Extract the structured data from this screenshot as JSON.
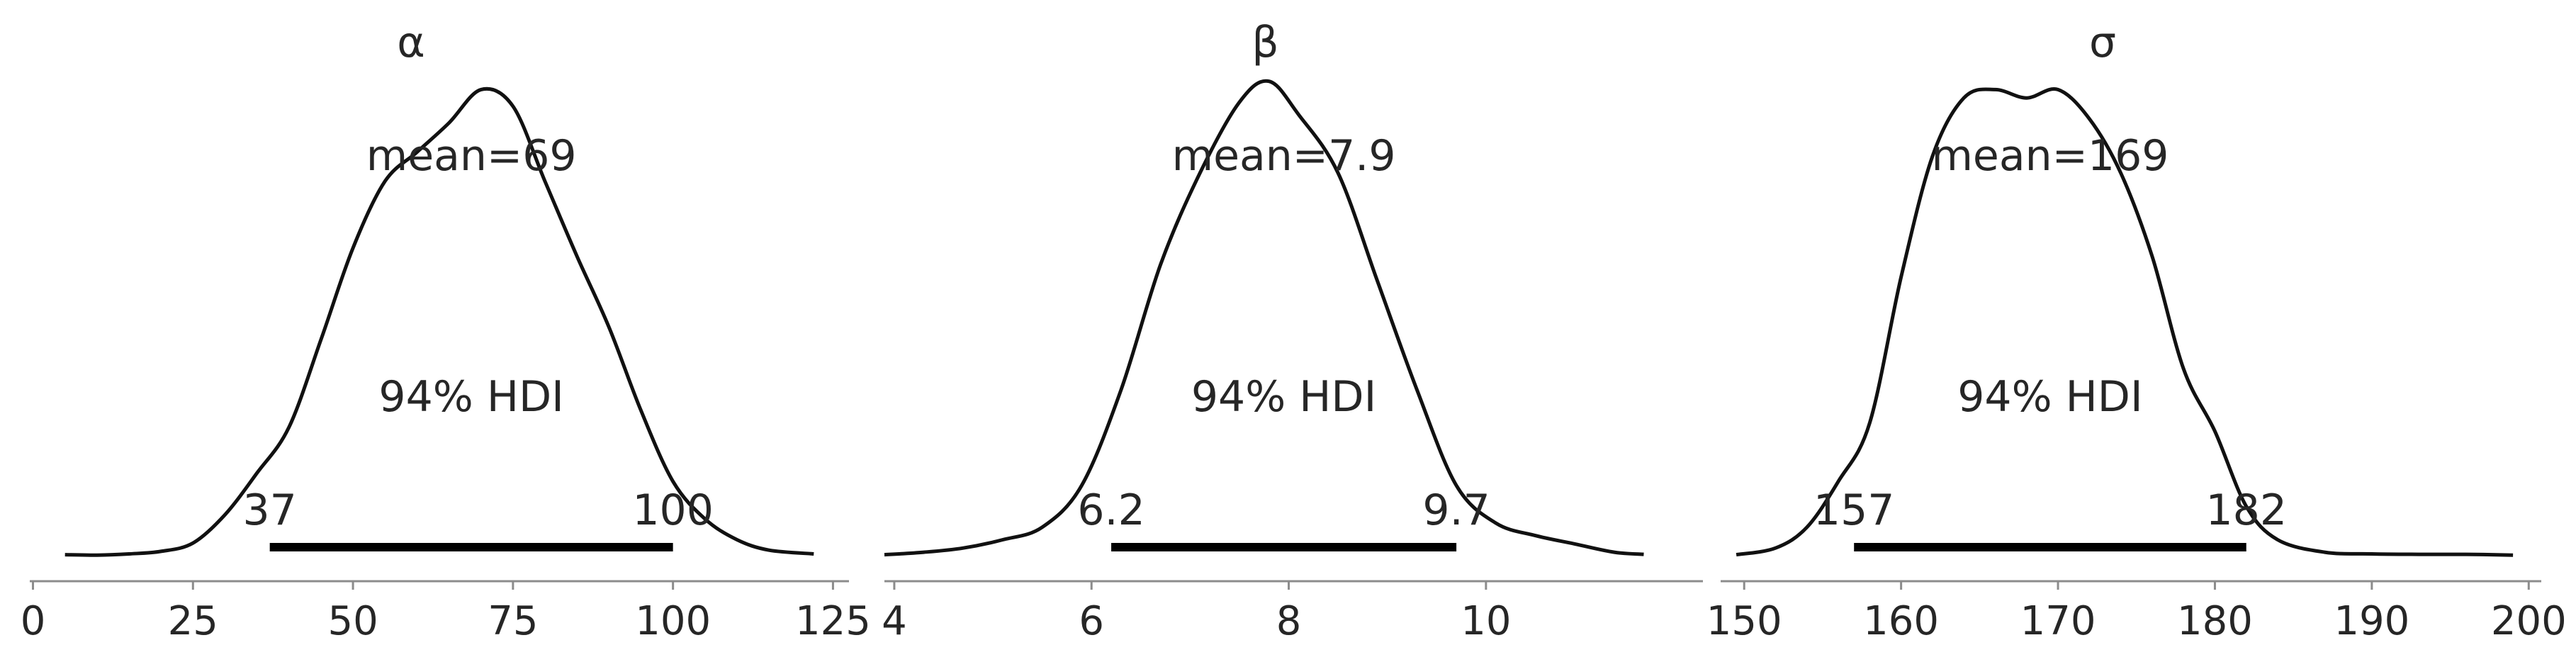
{
  "chart_data": [
    {
      "type": "line",
      "title": "α",
      "mean_label": "mean=69",
      "hdi_label": "94% HDI",
      "hdi": {
        "low": 37,
        "high": 100,
        "low_label": "37",
        "high_label": "100"
      },
      "xlim": [
        -0.5,
        127.5
      ],
      "xticks": [
        0,
        25,
        50,
        75,
        100,
        125
      ],
      "x": [
        5,
        10,
        15,
        20,
        25,
        30,
        35,
        40,
        45,
        50,
        55,
        60,
        65,
        70,
        75,
        80,
        85,
        90,
        95,
        100,
        105,
        110,
        115,
        122
      ],
      "density": [
        0.004,
        0.003,
        0.006,
        0.012,
        0.032,
        0.1,
        0.2,
        0.31,
        0.52,
        0.74,
        0.9,
        0.97,
        1.04,
        1.12,
        1.08,
        0.9,
        0.72,
        0.55,
        0.35,
        0.18,
        0.09,
        0.04,
        0.015,
        0.006
      ]
    },
    {
      "type": "line",
      "title": "β",
      "mean_label": "mean=7.9",
      "hdi_label": "94% HDI",
      "hdi": {
        "low": 6.2,
        "high": 9.7,
        "low_label": "6.2",
        "high_label": "9.7"
      },
      "xlim": [
        3.9,
        12.2
      ],
      "xticks": [
        4,
        6,
        8,
        10
      ],
      "x": [
        3.9,
        4.3,
        4.7,
        5.1,
        5.5,
        5.9,
        6.3,
        6.7,
        7.1,
        7.5,
        7.8,
        8.1,
        8.5,
        8.9,
        9.3,
        9.7,
        10.1,
        10.5,
        10.9,
        11.3,
        11.6
      ],
      "density": [
        0.004,
        0.01,
        0.02,
        0.04,
        0.07,
        0.17,
        0.4,
        0.7,
        0.92,
        1.09,
        1.14,
        1.06,
        0.92,
        0.66,
        0.4,
        0.17,
        0.08,
        0.05,
        0.03,
        0.01,
        0.005
      ]
    },
    {
      "type": "line",
      "title": "σ",
      "mean_label": "mean=169",
      "hdi_label": "94% HDI",
      "hdi": {
        "low": 157,
        "high": 182,
        "low_label": "157",
        "high_label": "182"
      },
      "xlim": [
        148.5,
        200.8
      ],
      "xticks": [
        150,
        160,
        170,
        180,
        190,
        200
      ],
      "x": [
        149.5,
        152,
        154,
        156,
        158,
        160,
        162,
        164,
        166,
        168,
        170,
        172,
        174,
        176,
        178,
        180,
        182,
        184,
        187,
        190,
        193,
        196,
        199
      ],
      "density": [
        0.004,
        0.02,
        0.07,
        0.18,
        0.32,
        0.67,
        0.96,
        1.1,
        1.12,
        1.1,
        1.12,
        1.05,
        0.92,
        0.72,
        0.45,
        0.3,
        0.12,
        0.04,
        0.01,
        0.006,
        0.005,
        0.005,
        0.003
      ]
    }
  ]
}
